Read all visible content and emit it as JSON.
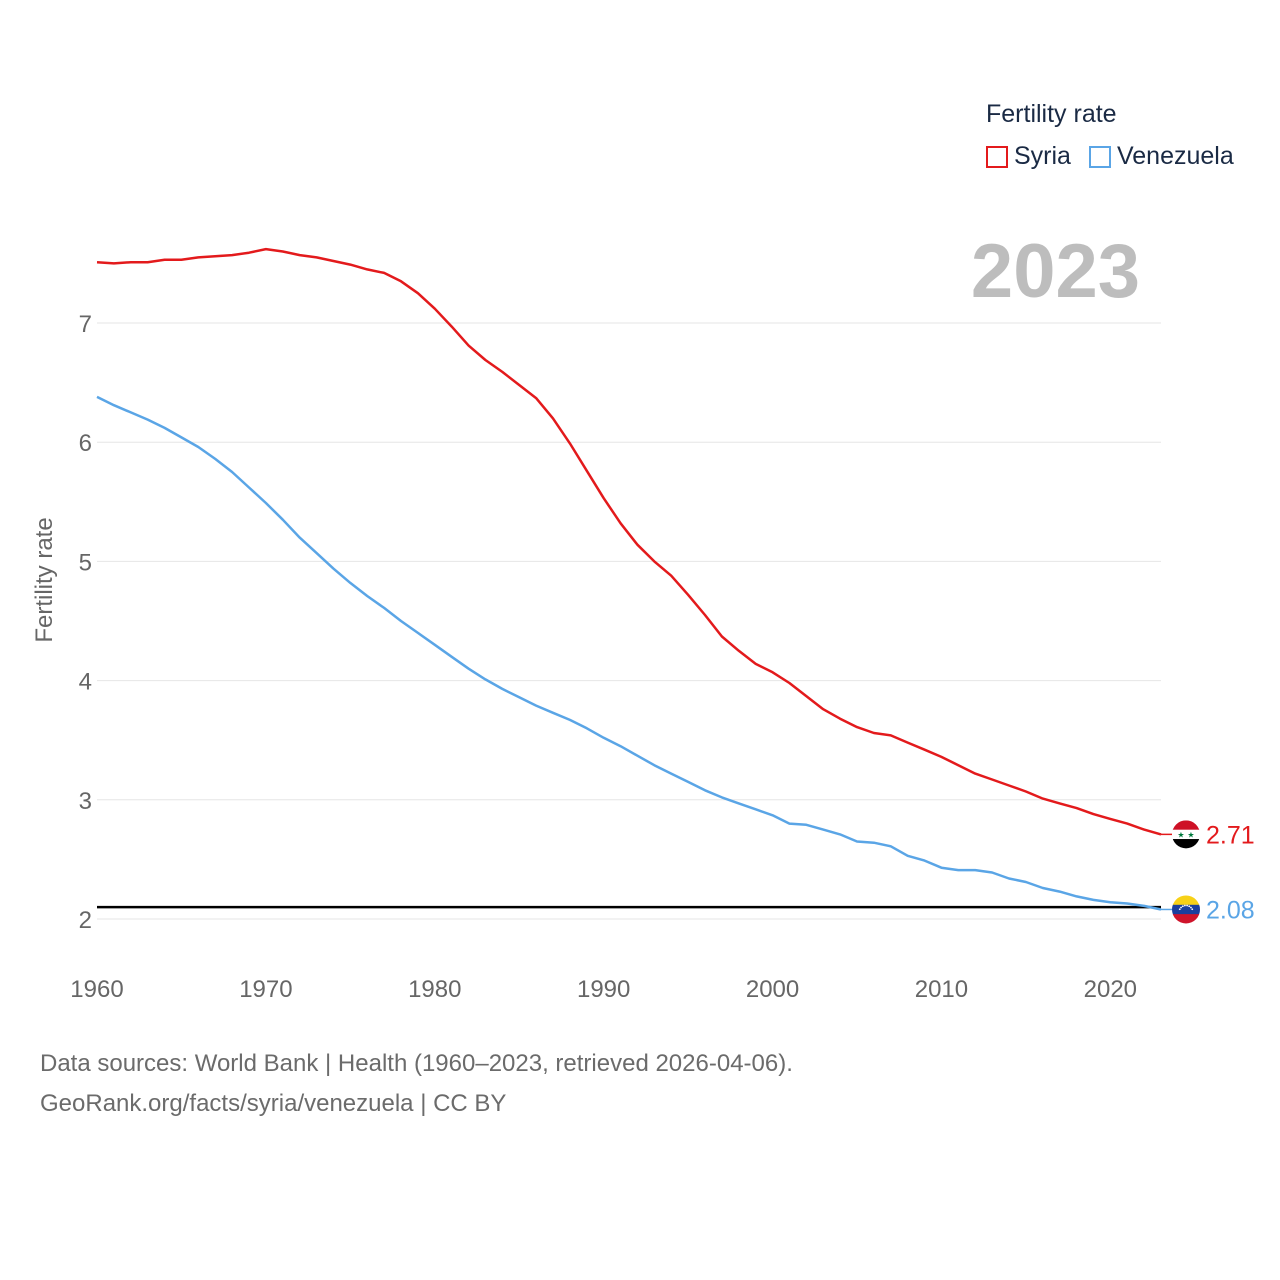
{
  "legend": {
    "title": "Fertility rate",
    "items": [
      {
        "name": "Syria",
        "color": "#e31a1c"
      },
      {
        "name": "Venezuela",
        "color": "#5aa5e6"
      }
    ]
  },
  "year_label": "2023",
  "footer": {
    "line1": "Data sources: World Bank | Health (1960–2023, retrieved 2026-04-06).",
    "line2": "GeoRank.org/facts/syria/venezuela | CC BY"
  },
  "chart_data": {
    "type": "line",
    "ylabel": "Fertility rate",
    "xlabel": "",
    "xlim": [
      1960,
      2023
    ],
    "ylim": [
      2,
      7.7
    ],
    "x_ticks": [
      1960,
      1970,
      1980,
      1990,
      2000,
      2010,
      2020
    ],
    "y_ticks": [
      2,
      3,
      4,
      5,
      6,
      7
    ],
    "reference_line": 2.1,
    "x": [
      1960,
      1961,
      1962,
      1963,
      1964,
      1965,
      1966,
      1967,
      1968,
      1969,
      1970,
      1971,
      1972,
      1973,
      1974,
      1975,
      1976,
      1977,
      1978,
      1979,
      1980,
      1981,
      1982,
      1983,
      1984,
      1985,
      1986,
      1987,
      1988,
      1989,
      1990,
      1991,
      1992,
      1993,
      1994,
      1995,
      1996,
      1997,
      1998,
      1999,
      2000,
      2001,
      2002,
      2003,
      2004,
      2005,
      2006,
      2007,
      2008,
      2009,
      2010,
      2011,
      2012,
      2013,
      2014,
      2015,
      2016,
      2017,
      2018,
      2019,
      2020,
      2021,
      2022,
      2023
    ],
    "series": [
      {
        "name": "Syria",
        "color": "#e31a1c",
        "end_label": "2.71",
        "values": [
          7.51,
          7.5,
          7.51,
          7.51,
          7.53,
          7.53,
          7.55,
          7.56,
          7.57,
          7.59,
          7.62,
          7.6,
          7.57,
          7.55,
          7.52,
          7.49,
          7.45,
          7.42,
          7.35,
          7.25,
          7.12,
          6.97,
          6.81,
          6.69,
          6.59,
          6.48,
          6.37,
          6.2,
          5.99,
          5.76,
          5.53,
          5.32,
          5.14,
          5.0,
          4.88,
          4.72,
          4.55,
          4.37,
          4.25,
          4.14,
          4.07,
          3.98,
          3.87,
          3.76,
          3.68,
          3.61,
          3.56,
          3.54,
          3.48,
          3.42,
          3.36,
          3.29,
          3.22,
          3.17,
          3.12,
          3.07,
          3.01,
          2.97,
          2.93,
          2.88,
          2.84,
          2.8,
          2.75,
          2.71
        ]
      },
      {
        "name": "Venezuela",
        "color": "#5aa5e6",
        "end_label": "2.08",
        "values": [
          6.38,
          6.31,
          6.25,
          6.19,
          6.12,
          6.04,
          5.96,
          5.86,
          5.75,
          5.62,
          5.49,
          5.35,
          5.2,
          5.07,
          4.94,
          4.82,
          4.71,
          4.61,
          4.5,
          4.4,
          4.3,
          4.2,
          4.1,
          4.01,
          3.93,
          3.86,
          3.79,
          3.73,
          3.67,
          3.6,
          3.52,
          3.45,
          3.37,
          3.29,
          3.22,
          3.15,
          3.08,
          3.02,
          2.97,
          2.92,
          2.87,
          2.8,
          2.79,
          2.75,
          2.71,
          2.65,
          2.64,
          2.61,
          2.53,
          2.49,
          2.43,
          2.41,
          2.41,
          2.39,
          2.34,
          2.31,
          2.26,
          2.23,
          2.19,
          2.16,
          2.14,
          2.13,
          2.11,
          2.08
        ]
      }
    ]
  }
}
